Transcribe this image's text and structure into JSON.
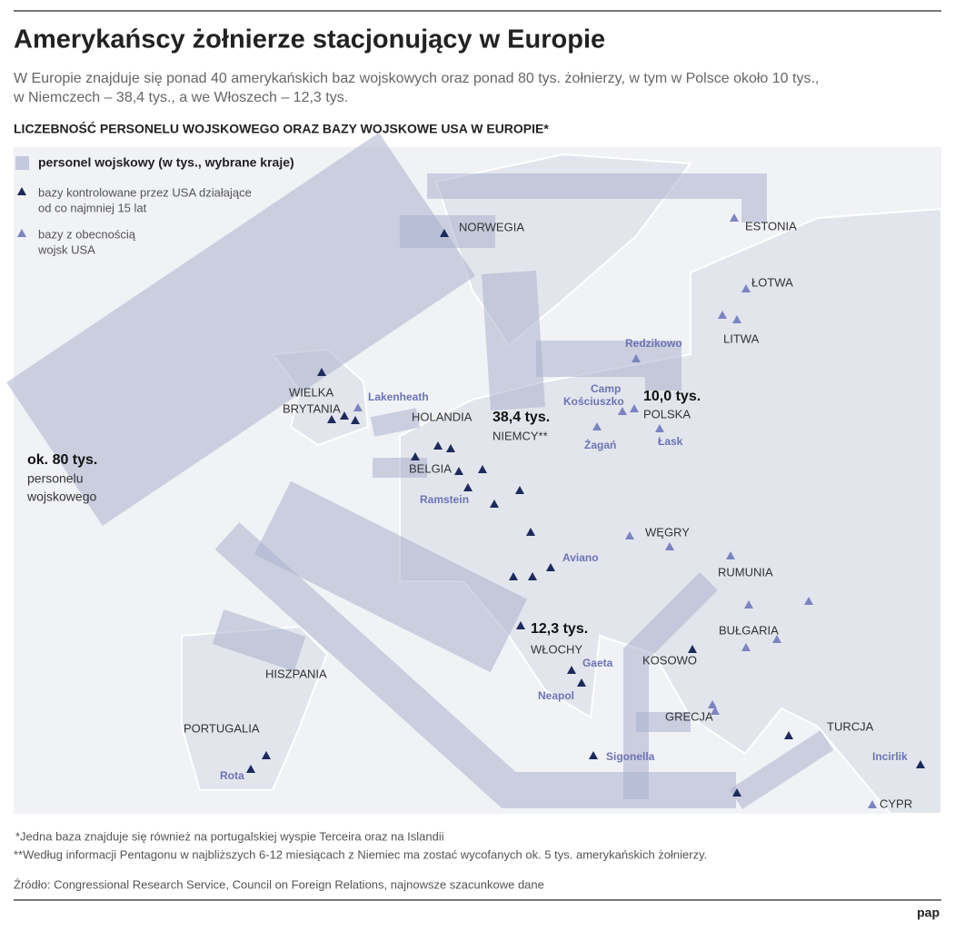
{
  "header": {
    "title": "Amerykańscy żołnierze stacjonujący w Europie",
    "subtitle": [
      "W Europie znajduje się ponad 40 amerykańskich baz wojskowych oraz ponad 80 tys. żołnierzy, w tym w Polsce około 10 tys.,",
      "w Niemczech – 38,4 tys., a we Włoszech – 12,3 tys."
    ]
  },
  "map": {
    "heading": "LICZEBNOŚĆ PERSONELU WOJSKOWEGO ORAZ BAZY WOJSKOWE USA W EUROPIE*",
    "legend": [
      [
        "personel wojskowy (w tys., wybrane kraje)"
      ],
      [
        "bazy kontrolowane przez USA działające",
        "od co najmniej 15 lat"
      ],
      [
        "bazy z obecnością",
        "wojsk USA"
      ]
    ],
    "countries": [
      "NORWEGIA",
      "ESTONIA",
      "ŁOTWA",
      "LITWA",
      "POLSKA",
      "NIEMCY**",
      "HOLANDIA",
      "BELGIA",
      "WIELKA",
      "BRYTANIA",
      "WĘGRY",
      "RUMUNIA",
      "BUŁGARIA",
      "KOSOWO",
      "GRECJA",
      "TURCJA",
      "CYPR",
      "WŁOCHY",
      "HISZPANIA",
      "PORTUGALIA"
    ],
    "bases": [
      "Redzikowo",
      "Camp",
      "Kościuszko",
      "Żagań",
      "Łask",
      "Lakenheath",
      "Ramstein",
      "Aviano",
      "Gaeta",
      "Neapol",
      "Sigonella",
      "Incirlik",
      "Rota"
    ],
    "figures": [
      "ok. 80 tys.",
      "personelu",
      "wojskowego",
      "38,4 tys.",
      "10,0 tys.",
      "12,3 tys."
    ]
  },
  "footer": {
    "notes": [
      "*Jedna baza znajduje się również na portugalskiej wyspie Terceira oraz na Islandii",
      "**Według informacji Pentagonu w najbliższych 6-12 miesiącach z Niemiec ma zostać wycofanych ok. 5 tys. amerykańskich żołnierzy."
    ],
    "source": "Źródło: Congressional Research Service, Council on Foreign Relations, najnowsze szacunkowe dane",
    "logo": "pap"
  }
}
